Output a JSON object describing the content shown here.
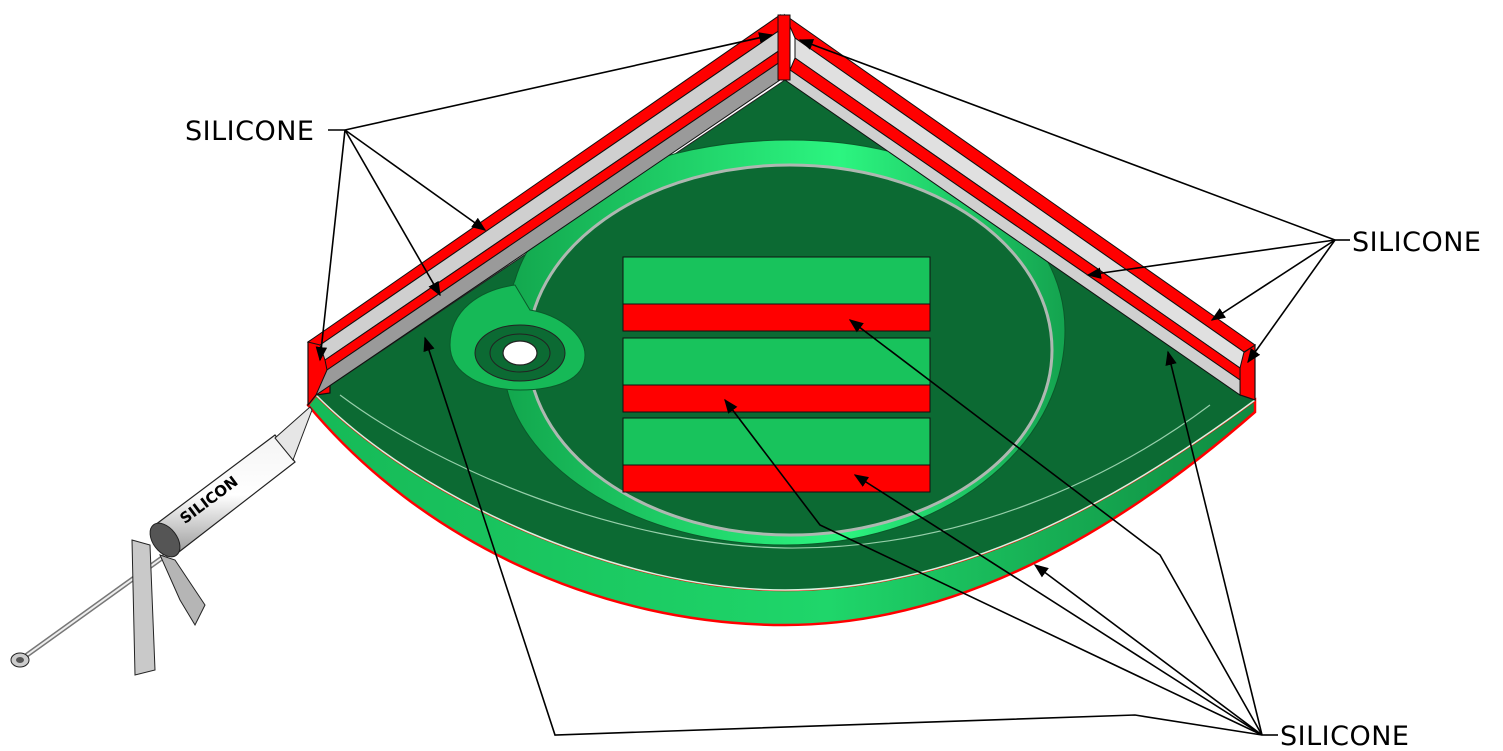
{
  "labels": {
    "top_left": "SILICONE",
    "right": "SILICONE",
    "bottom_right": "SILICONE"
  },
  "gun_text": "SILICON",
  "colors": {
    "tray_dark": "#0c6a33",
    "tray_light": "#18c35c",
    "tray_highlight": "#33ff88",
    "silicone_red": "#ff0000",
    "wall_grey": "#cfcfcf",
    "line": "#000000"
  }
}
